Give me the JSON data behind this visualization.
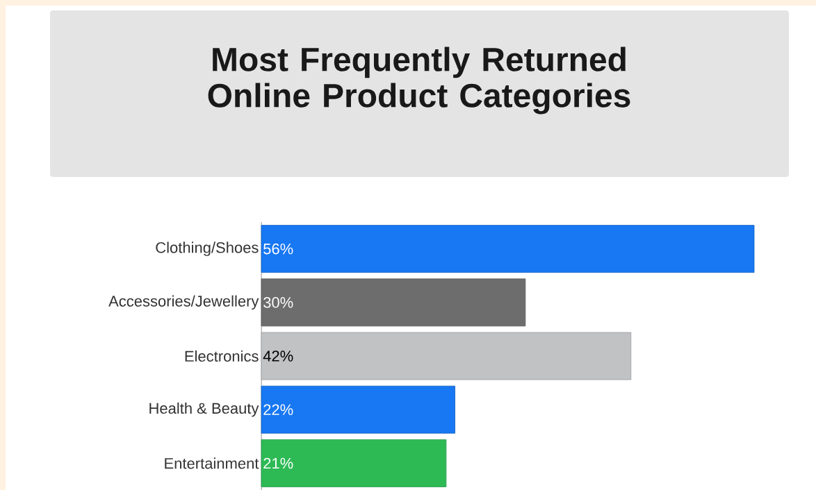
{
  "chart_data": {
    "type": "bar",
    "orientation": "horizontal",
    "title": "Most Frequently Returned Online Product Categories",
    "categories": [
      "Clothing/Shoes",
      "Accessories/Jewellery",
      "Electronics",
      "Health & Beauty",
      "Entertainment"
    ],
    "values": [
      56,
      30,
      42,
      22,
      21
    ],
    "colors": [
      "#1877f2",
      "#6d6d6d",
      "#c0c2c4",
      "#1877f2",
      "#2dba55"
    ],
    "value_labels": [
      "56%",
      "30%",
      "42%",
      "22%",
      "21%"
    ]
  }
}
